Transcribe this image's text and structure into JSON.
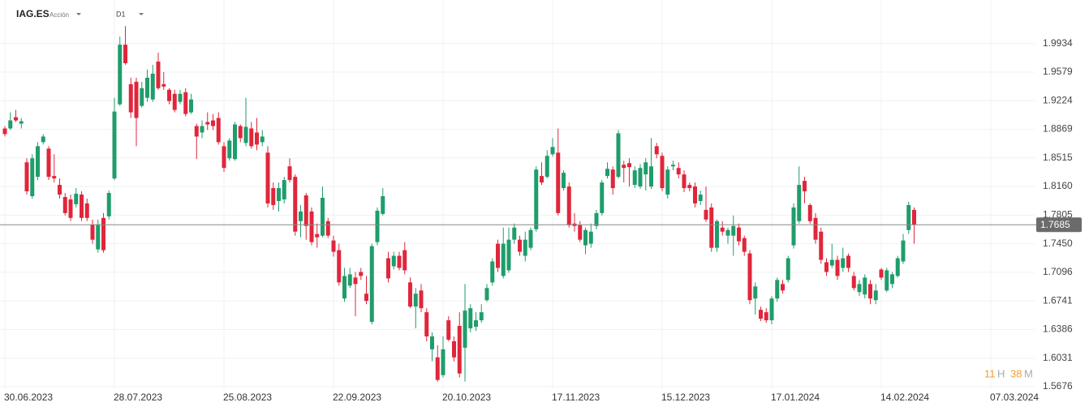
{
  "header": {
    "symbol": "IAG.ES",
    "instrument_type": "Acción",
    "timeframe": "D1"
  },
  "countdown": {
    "hours": 11,
    "hours_unit": "H",
    "minutes": 38,
    "minutes_unit": "M"
  },
  "chart_data": {
    "type": "candlestick",
    "categories": [
      "30.06.2023",
      null,
      null,
      null,
      null,
      null,
      null,
      null,
      null,
      null,
      null,
      null,
      null,
      null,
      null,
      null,
      null,
      null,
      null,
      null,
      "28.07.2023",
      null,
      null,
      null,
      null,
      null,
      null,
      null,
      null,
      null,
      null,
      null,
      null,
      null,
      null,
      null,
      null,
      null,
      null,
      null,
      "25.08.2023",
      null,
      null,
      null,
      null,
      null,
      null,
      null,
      null,
      null,
      null,
      null,
      null,
      null,
      null,
      null,
      null,
      null,
      null,
      null,
      "22.09.2023",
      null,
      null,
      null,
      null,
      null,
      null,
      null,
      null,
      null,
      null,
      null,
      null,
      null,
      null,
      null,
      null,
      null,
      null,
      null,
      "20.10.2023",
      null,
      null,
      null,
      null,
      null,
      null,
      null,
      null,
      null,
      null,
      null,
      null,
      null,
      null,
      null,
      null,
      null,
      null,
      null,
      "17.11.2023",
      null,
      null,
      null,
      null,
      null,
      null,
      null,
      null,
      null,
      null,
      null,
      null,
      null,
      null,
      null,
      null,
      null,
      null,
      null,
      "15.12.2023",
      null,
      null,
      null,
      null,
      null,
      null,
      null,
      null,
      null,
      null,
      null,
      null,
      null,
      null,
      null,
      null,
      null,
      null,
      null,
      "17.01.2024",
      null,
      null,
      null,
      null,
      null,
      null,
      null,
      null,
      null,
      null,
      null,
      null,
      null,
      null,
      null,
      null,
      null,
      null,
      null,
      "14.02.2024",
      null,
      null,
      null,
      null,
      null,
      null,
      null,
      null,
      null,
      null,
      null,
      null,
      null,
      null,
      null,
      null,
      null,
      null,
      null,
      "07.03.2024"
    ],
    "open": [
      1.888,
      1.888,
      1.902,
      1.894,
      1.846,
      1.804,
      1.828,
      1.871,
      1.863,
      1.829,
      1.818,
      1.803,
      1.8,
      1.794,
      1.806,
      1.795,
      1.769,
      1.738,
      1.777,
      1.779,
      1.826,
      1.918,
      1.992,
      1.943,
      1.946,
      1.916,
      1.926,
      1.924,
      1.971,
      1.943,
      1.936,
      1.931,
      1.921,
      1.933,
      1.908,
      1.891,
      1.883,
      1.896,
      1.898,
      1.901,
      1.866,
      1.851,
      1.85,
      1.891,
      1.87,
      1.888,
      1.883,
      1.871,
      1.858,
      1.814,
      1.798,
      1.8,
      1.841,
      1.828,
      1.773,
      1.805,
      1.785,
      1.757,
      1.755,
      1.773,
      1.749,
      1.737,
      1.677,
      1.693,
      1.703,
      1.71,
      1.683,
      1.648,
      1.747,
      1.782,
      1.727,
      1.717,
      1.73,
      1.737,
      1.697,
      1.667,
      1.687,
      1.66,
      1.614,
      1.604,
      1.582,
      1.65,
      1.624,
      1.643,
      1.616,
      1.64,
      1.642,
      1.65,
      1.675,
      1.697,
      1.745,
      1.705,
      1.712,
      1.75,
      1.75,
      1.73,
      1.74,
      1.763,
      1.829,
      1.828,
      1.856,
      1.858,
      1.814,
      1.816,
      1.77,
      1.768,
      1.743,
      1.745,
      1.767,
      1.783,
      1.829,
      1.837,
      1.828,
      1.843,
      1.845,
      1.818,
      1.816,
      1.831,
      1.816,
      1.866,
      1.854,
      1.806,
      1.841,
      1.839,
      1.831,
      1.818,
      1.816,
      1.798,
      1.787,
      1.79,
      1.74,
      1.765,
      1.755,
      1.755,
      1.765,
      1.752,
      1.733,
      1.677,
      1.663,
      1.66,
      1.65,
      1.677,
      1.695,
      1.7,
      1.743,
      1.773,
      1.823,
      1.793,
      1.777,
      1.76,
      1.722,
      1.718,
      1.725,
      1.715,
      1.73,
      1.705,
      1.685,
      1.682,
      1.695,
      1.675,
      1.713,
      1.687,
      1.695,
      1.705,
      1.723,
      1.762,
      1.787,
      null,
      null,
      null,
      null,
      null,
      null,
      null,
      null,
      null,
      null,
      null,
      null,
      null,
      null
    ],
    "high": [
      1.891,
      1.908,
      1.911,
      1.901,
      1.851,
      1.856,
      1.871,
      1.881,
      1.866,
      1.856,
      1.826,
      1.808,
      1.806,
      1.814,
      1.81,
      1.801,
      1.775,
      1.775,
      1.783,
      1.811,
      1.926,
      2.002,
      2.015,
      1.951,
      1.951,
      1.946,
      1.961,
      1.967,
      1.982,
      1.958,
      1.938,
      1.936,
      1.936,
      1.938,
      1.931,
      1.894,
      1.898,
      1.908,
      1.906,
      1.908,
      1.871,
      1.876,
      1.896,
      1.893,
      1.926,
      1.896,
      1.901,
      1.886,
      1.866,
      1.821,
      1.821,
      1.828,
      1.851,
      1.831,
      1.793,
      1.808,
      1.79,
      1.77,
      1.816,
      1.777,
      1.755,
      1.745,
      1.715,
      1.715,
      1.71,
      1.715,
      1.705,
      1.745,
      1.79,
      1.814,
      1.735,
      1.735,
      1.735,
      1.747,
      1.703,
      1.69,
      1.695,
      1.665,
      1.635,
      1.619,
      1.63,
      1.655,
      1.63,
      1.66,
      1.695,
      1.67,
      1.66,
      1.67,
      1.695,
      1.727,
      1.75,
      1.765,
      1.765,
      1.77,
      1.755,
      1.76,
      1.765,
      1.841,
      1.846,
      1.861,
      1.876,
      1.888,
      1.836,
      1.821,
      1.783,
      1.773,
      1.765,
      1.77,
      1.787,
      1.824,
      1.846,
      1.841,
      1.886,
      1.848,
      1.851,
      1.841,
      1.844,
      1.851,
      1.876,
      1.87,
      1.858,
      1.841,
      1.848,
      1.846,
      1.836,
      1.821,
      1.821,
      1.811,
      1.816,
      1.795,
      1.775,
      1.773,
      1.765,
      1.78,
      1.77,
      1.755,
      1.737,
      1.697,
      1.667,
      1.665,
      1.68,
      1.703,
      1.7,
      1.73,
      1.795,
      1.841,
      1.828,
      1.795,
      1.783,
      1.765,
      1.727,
      1.745,
      1.73,
      1.74,
      1.733,
      1.71,
      1.7,
      1.707,
      1.7,
      1.695,
      1.715,
      1.715,
      1.71,
      1.73,
      1.757,
      1.797,
      1.79,
      null,
      null,
      null,
      null,
      null,
      null,
      null,
      null,
      null,
      null,
      null,
      null,
      null,
      null
    ],
    "low": [
      1.878,
      1.886,
      1.896,
      1.888,
      1.806,
      1.801,
      1.824,
      1.868,
      1.824,
      1.821,
      1.801,
      1.78,
      1.773,
      1.79,
      1.773,
      1.773,
      1.745,
      1.734,
      1.734,
      1.775,
      1.824,
      1.916,
      1.967,
      1.901,
      1.866,
      1.914,
      1.921,
      1.921,
      1.936,
      1.936,
      1.918,
      1.908,
      1.918,
      1.903,
      1.906,
      1.85,
      1.876,
      1.886,
      1.886,
      1.868,
      1.834,
      1.848,
      1.848,
      1.871,
      1.866,
      1.863,
      1.861,
      1.866,
      1.79,
      1.787,
      1.785,
      1.795,
      1.821,
      1.755,
      1.753,
      1.75,
      1.743,
      1.74,
      1.753,
      1.752,
      1.729,
      1.693,
      1.673,
      1.69,
      1.655,
      1.7,
      1.67,
      1.645,
      1.743,
      1.78,
      1.697,
      1.713,
      1.712,
      1.707,
      1.665,
      1.64,
      1.66,
      1.624,
      1.599,
      1.574,
      1.579,
      1.624,
      1.599,
      1.579,
      1.574,
      1.635,
      1.637,
      1.647,
      1.673,
      1.693,
      1.71,
      1.702,
      1.709,
      1.745,
      1.73,
      1.723,
      1.737,
      1.76,
      1.818,
      1.826,
      1.853,
      1.78,
      1.811,
      1.765,
      1.76,
      1.747,
      1.732,
      1.74,
      1.763,
      1.78,
      1.826,
      1.806,
      1.826,
      1.821,
      1.816,
      1.814,
      1.813,
      1.811,
      1.813,
      1.851,
      1.81,
      1.801,
      1.836,
      1.826,
      1.809,
      1.81,
      1.79,
      1.793,
      1.772,
      1.735,
      1.735,
      1.755,
      1.745,
      1.73,
      1.743,
      1.73,
      1.67,
      1.657,
      1.649,
      1.647,
      1.645,
      1.673,
      1.683,
      1.697,
      1.739,
      1.77,
      1.795,
      1.77,
      1.745,
      1.72,
      1.705,
      1.715,
      1.7,
      1.71,
      1.71,
      1.687,
      1.68,
      1.677,
      1.67,
      1.67,
      1.7,
      1.685,
      1.69,
      1.703,
      1.72,
      1.757,
      1.745,
      null,
      null,
      null,
      null,
      null,
      null,
      null,
      null,
      null,
      null,
      null,
      null,
      null,
      null
    ],
    "close": [
      1.881,
      1.898,
      1.898,
      1.897,
      1.81,
      1.851,
      1.866,
      1.878,
      1.828,
      1.826,
      1.806,
      1.783,
      1.777,
      1.807,
      1.777,
      1.777,
      1.75,
      1.769,
      1.737,
      1.808,
      1.909,
      1.992,
      1.969,
      1.908,
      1.901,
      1.938,
      1.951,
      1.956,
      1.938,
      1.94,
      1.922,
      1.911,
      1.931,
      1.906,
      1.924,
      1.878,
      1.891,
      1.893,
      1.891,
      1.871,
      1.839,
      1.873,
      1.893,
      1.876,
      1.89,
      1.866,
      1.868,
      1.878,
      1.795,
      1.793,
      1.814,
      1.824,
      1.824,
      1.76,
      1.785,
      1.767,
      1.747,
      1.753,
      1.802,
      1.755,
      1.735,
      1.697,
      1.705,
      1.707,
      1.695,
      1.705,
      1.674,
      1.742,
      1.786,
      1.804,
      1.702,
      1.73,
      1.715,
      1.712,
      1.667,
      1.683,
      1.665,
      1.63,
      1.63,
      1.576,
      1.614,
      1.626,
      1.604,
      1.584,
      1.662,
      1.665,
      1.65,
      1.66,
      1.69,
      1.723,
      1.715,
      1.745,
      1.75,
      1.765,
      1.735,
      1.75,
      1.762,
      1.837,
      1.821,
      1.854,
      1.865,
      1.783,
      1.833,
      1.768,
      1.767,
      1.75,
      1.762,
      1.76,
      1.783,
      1.821,
      1.838,
      1.814,
      1.882,
      1.839,
      1.84,
      1.836,
      1.839,
      1.846,
      1.841,
      1.856,
      1.814,
      1.837,
      1.843,
      1.831,
      1.814,
      1.814,
      1.795,
      1.806,
      1.775,
      1.74,
      1.773,
      1.76,
      1.762,
      1.767,
      1.748,
      1.735,
      1.675,
      1.692,
      1.652,
      1.65,
      1.677,
      1.7,
      1.687,
      1.727,
      1.79,
      1.818,
      1.81,
      1.773,
      1.75,
      1.725,
      1.71,
      1.725,
      1.705,
      1.727,
      1.715,
      1.69,
      1.695,
      1.703,
      1.677,
      1.687,
      1.703,
      1.712,
      1.707,
      1.727,
      1.749,
      1.793,
      1.7685,
      null,
      null,
      null,
      null,
      null,
      null,
      null,
      null,
      null,
      null,
      null,
      null,
      null,
      null
    ],
    "up_color": "#1f9d6b",
    "down_color": "#e0263b",
    "last_price": {
      "value": 1.7685,
      "label": "1.7685"
    },
    "ylim": [
      1.5646,
      2.0474
    ],
    "yticks": [
      1.5676,
      1.6031,
      1.6386,
      1.6741,
      1.7096,
      {
        "value": 1.745,
        "label": "1.7450"
      },
      1.7805,
      {
        "value": 1.816,
        "label": "1.8160"
      },
      1.8515,
      1.8869,
      1.9224,
      1.9579,
      1.9934
    ],
    "grid": true
  }
}
